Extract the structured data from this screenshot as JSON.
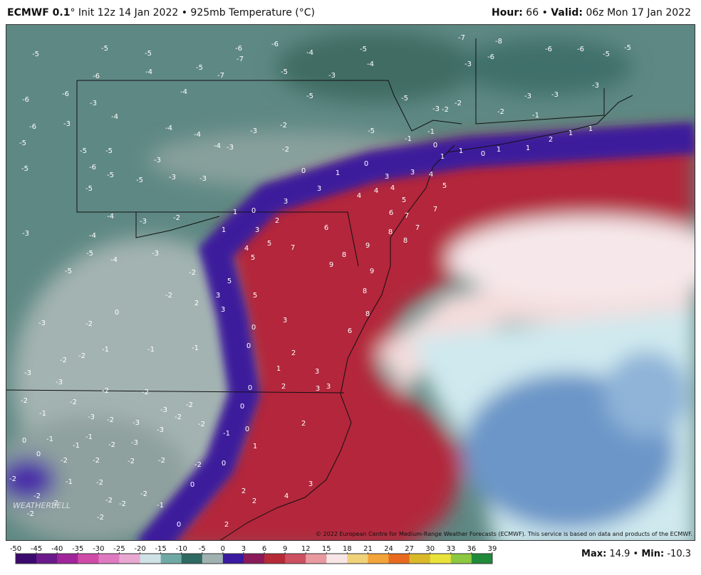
{
  "header": {
    "model": "ECMWF 0.1",
    "description": "° Init 12z 14 Jan 2022 • 925mb Temperature (°C)",
    "hour_label": "Hour:",
    "hour": 66,
    "separator": "•",
    "valid_label": "Valid:",
    "valid": "06z Mon 17 Jan 2022"
  },
  "map_labels": [
    -5,
    -5,
    -5,
    -6,
    -6,
    -4,
    -5,
    -7,
    -8,
    -6,
    -6,
    -5,
    -5,
    -6,
    -4,
    -5,
    -7,
    -7,
    -5,
    -3,
    -4,
    -3,
    -6,
    -6,
    -6,
    -3,
    -4,
    -5,
    -5,
    -3,
    -3,
    -3,
    -4,
    -6,
    -3,
    -4,
    -4,
    -3,
    -2,
    -5,
    -3,
    -2,
    -2,
    -2,
    -1,
    -5,
    -5,
    -5,
    -3,
    -4,
    -3,
    -2,
    -5,
    -6,
    -5,
    -3,
    -3,
    -5,
    -5,
    -1,
    -1,
    0,
    0,
    1,
    0,
    3,
    3,
    4,
    3,
    4,
    4,
    4,
    5,
    5,
    3,
    1,
    0,
    2,
    6,
    7,
    7,
    -4,
    -3,
    -2,
    -3,
    -4,
    1,
    3,
    6,
    8,
    7,
    5,
    7,
    -5,
    4,
    5,
    8,
    9,
    8,
    -4,
    -3,
    -5,
    -2,
    9,
    9,
    5,
    5,
    8,
    -2,
    3,
    2,
    3,
    0,
    8,
    -2,
    -3,
    3,
    0,
    6,
    0,
    -1,
    -1,
    -1,
    -2,
    -2,
    -3,
    1,
    2,
    3,
    2,
    3,
    3,
    -3,
    -2,
    -2,
    0,
    -2,
    -2,
    -2,
    0,
    -1,
    -3,
    -2,
    -3,
    -3,
    -2,
    -3,
    -2,
    -1,
    0,
    2,
    0,
    -1,
    -1,
    -1,
    -2,
    -3,
    -2,
    0,
    1,
    -2,
    -2,
    -2,
    -2,
    0,
    -2,
    -1,
    -2,
    0,
    2,
    4,
    3,
    -2,
    -2,
    -2,
    -2,
    -2,
    -1,
    2,
    -2,
    -2,
    0,
    2,
    1,
    1,
    2,
    1,
    1,
    0,
    1,
    1
  ],
  "copyright": "© 2022 European Centre for Medium-Range Weather Forecasts (ECMWF). This service is based on data and products of the ECMWF.",
  "watermark": "WEATHERBELL",
  "colorbar": {
    "ticks": [
      -50,
      -45,
      -40,
      -35,
      -30,
      -25,
      -20,
      -15,
      -10,
      -5,
      0,
      3,
      6,
      9,
      12,
      15,
      18,
      21,
      24,
      27,
      30,
      33,
      36,
      39
    ],
    "colors": [
      "#3a0a6e",
      "#6a1a8a",
      "#a0259a",
      "#d04aa8",
      "#e07ac0",
      "#e9a8d2",
      "#cfe2e6",
      "#6fa9a5",
      "#2f6a62",
      "#9fb2b0",
      "#3a1aa0",
      "#8a1a5a",
      "#b52a35",
      "#cc5060",
      "#e89aa0",
      "#f8e6e6",
      "#f0d27a",
      "#f2a33a",
      "#e86a20",
      "#d9b92a",
      "#e9e23a",
      "#8cc840",
      "#208a3a"
    ]
  },
  "footer": {
    "max_label": "Max:",
    "max": 14.9,
    "separator": "•",
    "min_label": "Min:",
    "min": -10.3
  }
}
